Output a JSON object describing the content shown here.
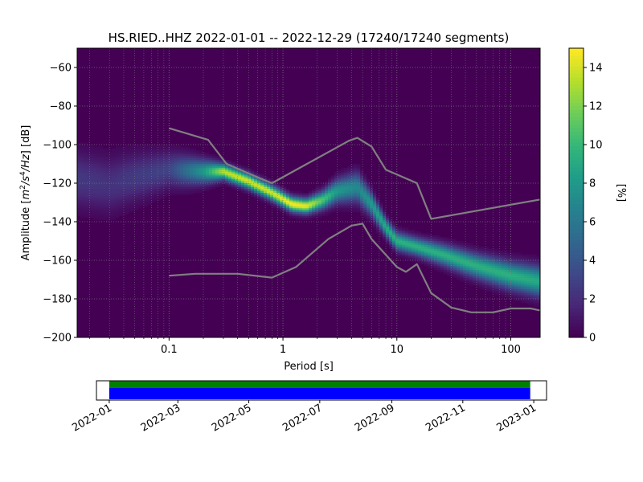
{
  "chart_data": [
    {
      "type": "heatmap",
      "title": "HS.RIED..HHZ   2022-01-01 -- 2022-12-29  (17240/17240 segments)",
      "xlabel": "Period [s]",
      "ylabel_parts": [
        "Amplitude [",
        "m",
        "2",
        "/s",
        "4",
        "/",
        "Hz",
        "] [dB]"
      ],
      "x_scale": "log",
      "xlim": [
        0.0156,
        181
      ],
      "ylim": [
        -200,
        -50
      ],
      "x_ticks": [
        0.1,
        1,
        10,
        100
      ],
      "x_tick_labels": [
        "0.1",
        "1",
        "10",
        "100"
      ],
      "y_ticks": [
        -200,
        -180,
        -160,
        -140,
        -120,
        -100,
        -80,
        -60
      ],
      "y_tick_labels": [
        "−200",
        "−180",
        "−160",
        "−140",
        "−120",
        "−100",
        "−80",
        "−60"
      ],
      "grid": "dotted",
      "colormap": "viridis",
      "colorbar": {
        "label": "[%]",
        "range": [
          0,
          15
        ],
        "ticks": [
          0,
          2,
          4,
          6,
          8,
          10,
          12,
          14
        ],
        "tick_labels": [
          "0",
          "2",
          "4",
          "6",
          "8",
          "10",
          "12",
          "14"
        ]
      },
      "density_ridge": [
        {
          "period": 0.016,
          "db": -118,
          "peak": 2.5,
          "width": 9
        },
        {
          "period": 0.03,
          "db": -121,
          "peak": 2.2,
          "width": 9
        },
        {
          "period": 0.05,
          "db": -117,
          "peak": 2.6,
          "width": 8
        },
        {
          "period": 0.1,
          "db": -113,
          "peak": 3.0,
          "width": 6
        },
        {
          "period": 0.2,
          "db": -114,
          "peak": 8.0,
          "width": 4
        },
        {
          "period": 0.3,
          "db": -114,
          "peak": 13.5,
          "width": 2.5
        },
        {
          "period": 0.5,
          "db": -119,
          "peak": 14.0,
          "width": 2.5
        },
        {
          "period": 0.8,
          "db": -125,
          "peak": 14.0,
          "width": 2.5
        },
        {
          "period": 1.2,
          "db": -131,
          "peak": 15.0,
          "width": 2.5
        },
        {
          "period": 1.6,
          "db": -132,
          "peak": 14.5,
          "width": 2.5
        },
        {
          "period": 2.2,
          "db": -129,
          "peak": 11.0,
          "width": 3
        },
        {
          "period": 3.0,
          "db": -124,
          "peak": 8.0,
          "width": 4
        },
        {
          "period": 4.5,
          "db": -122,
          "peak": 7.0,
          "width": 5
        },
        {
          "period": 6.0,
          "db": -131,
          "peak": 8.0,
          "width": 4
        },
        {
          "period": 8.0,
          "db": -143,
          "peak": 9.0,
          "width": 3
        },
        {
          "period": 10.0,
          "db": -150,
          "peak": 9.5,
          "width": 3
        },
        {
          "period": 15.0,
          "db": -153,
          "peak": 9.5,
          "width": 3
        },
        {
          "period": 25.0,
          "db": -157,
          "peak": 9.5,
          "width": 3.5
        },
        {
          "period": 50.0,
          "db": -163,
          "peak": 9.5,
          "width": 4
        },
        {
          "period": 100.0,
          "db": -168,
          "peak": 9.5,
          "width": 4.5
        },
        {
          "period": 180.0,
          "db": -171,
          "peak": 9.0,
          "width": 5
        }
      ],
      "series": [
        {
          "name": "",
          "color": "#808080",
          "points": [
            [
              0.1,
              -91.5
            ],
            [
              0.22,
              -97.5
            ],
            [
              0.32,
              -110
            ],
            [
              0.6,
              -117
            ],
            [
              0.8,
              -120
            ],
            [
              3.8,
              -98
            ],
            [
              4.5,
              -96.5
            ],
            [
              6.0,
              -101
            ],
            [
              8.0,
              -113
            ],
            [
              15.0,
              -120
            ],
            [
              20.0,
              -138.5
            ],
            [
              180.0,
              -128.5
            ]
          ]
        },
        {
          "name": "",
          "color": "#808080",
          "points": [
            [
              0.1,
              -168
            ],
            [
              0.17,
              -167
            ],
            [
              0.4,
              -167
            ],
            [
              0.8,
              -169
            ],
            [
              1.3,
              -163.5
            ],
            [
              2.5,
              -149
            ],
            [
              4.0,
              -142
            ],
            [
              5.0,
              -141
            ],
            [
              6.0,
              -149
            ],
            [
              10.0,
              -163.5
            ],
            [
              12.0,
              -166
            ],
            [
              15.0,
              -162
            ],
            [
              20.0,
              -177
            ],
            [
              30.0,
              -184.5
            ],
            [
              45.0,
              -187
            ],
            [
              70.0,
              -187
            ],
            [
              100.0,
              -185
            ],
            [
              150.0,
              -185
            ],
            [
              180.0,
              -186
            ]
          ]
        }
      ]
    },
    {
      "type": "bar",
      "title": "",
      "x_axis": "date",
      "xlim": [
        "2021-12-21",
        "2023-01-12"
      ],
      "x_ticks": [
        "2022-01",
        "2022-03",
        "2022-05",
        "2022-07",
        "2022-09",
        "2022-11",
        "2023-01"
      ],
      "x_tick_labels": [
        "2022-01",
        "2022-03",
        "2022-05",
        "2022-07",
        "2022-09",
        "2022-11",
        "2023-01"
      ],
      "series": [
        {
          "name": "",
          "color": "#008000",
          "start": "2022-01-01",
          "end": "2022-12-29"
        },
        {
          "name": "",
          "color": "#0000ff",
          "start": "2022-01-01",
          "end": "2022-12-29"
        }
      ]
    }
  ]
}
